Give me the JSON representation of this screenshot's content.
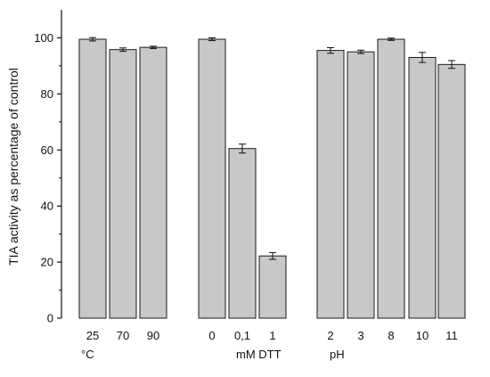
{
  "chart_data": {
    "type": "bar",
    "ylabel": "TIA activity as percentage of control",
    "ylim": [
      0,
      110
    ],
    "yticks": [
      0,
      20,
      40,
      60,
      80,
      100
    ],
    "grid": false,
    "bar_color": "#c8c8c8",
    "bar_edge_color": "#1a1a1a",
    "groups": [
      {
        "label": "°C",
        "categories": [
          "25",
          "70",
          "90"
        ],
        "values": [
          99.5,
          95.8,
          96.6
        ],
        "errors": [
          0.6,
          0.6,
          0.4
        ]
      },
      {
        "label": "mM DTT",
        "categories": [
          "0",
          "0,1",
          "1"
        ],
        "values": [
          99.5,
          60.5,
          22.2
        ],
        "errors": [
          0.5,
          1.6,
          1.2
        ]
      },
      {
        "label": "pH",
        "categories": [
          "2",
          "3",
          "8",
          "10",
          "11"
        ],
        "values": [
          95.5,
          95.0,
          99.5,
          93.0,
          90.5
        ],
        "errors": [
          1.0,
          0.6,
          0.4,
          1.8,
          1.4
        ]
      }
    ]
  }
}
